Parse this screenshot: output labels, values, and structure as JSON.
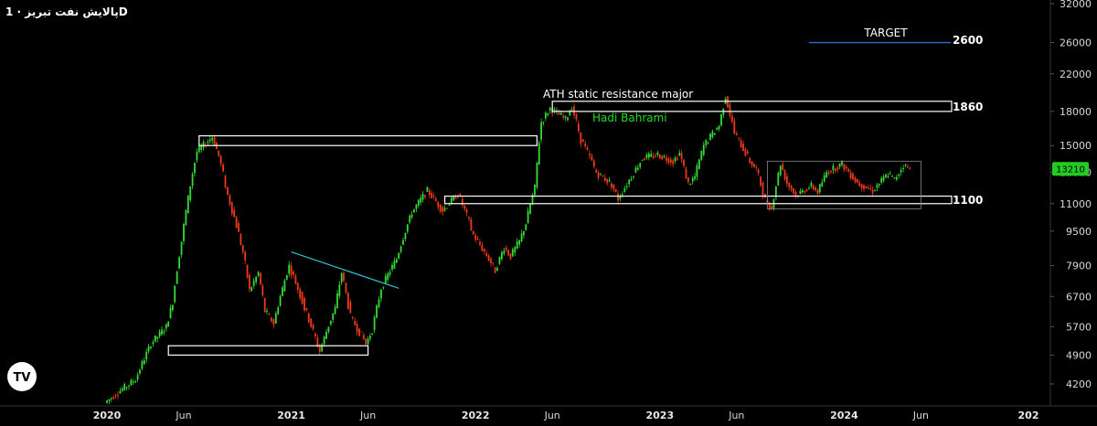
{
  "header": {
    "symbol": "پالایش نفت تبریز · 1D"
  },
  "colors": {
    "up": "#33dd33",
    "down": "#ee3a1a",
    "accent": "#2a6fd6",
    "trend": "#2ec4d6",
    "price_tag": "#22cc22"
  },
  "chart_data": {
    "type": "candlestick",
    "title": "پالایش نفت تبریز · 1D",
    "y_scale": "log",
    "y_ticks": [
      "32000",
      "26000",
      "22000",
      "18000",
      "15000",
      "13000",
      "11000",
      "9500",
      "7900",
      "6700",
      "5700",
      "4900",
      "4200"
    ],
    "x_ticks": [
      {
        "label": "2020",
        "date": "2020-01",
        "bold": true
      },
      {
        "label": "Jun",
        "date": "2020-06",
        "bold": false
      },
      {
        "label": "2021",
        "date": "2021-01",
        "bold": true
      },
      {
        "label": "Jun",
        "date": "2021-06",
        "bold": false
      },
      {
        "label": "2022",
        "date": "2022-01",
        "bold": true
      },
      {
        "label": "Jun",
        "date": "2022-06",
        "bold": false
      },
      {
        "label": "2023",
        "date": "2023-01",
        "bold": true
      },
      {
        "label": "Jun",
        "date": "2023-06",
        "bold": false
      },
      {
        "label": "2024",
        "date": "2024-01",
        "bold": true
      },
      {
        "label": "Jun",
        "date": "2024-06",
        "bold": false
      },
      {
        "label": "202",
        "date": "2025-01",
        "bold": true
      }
    ],
    "last_price": "13210",
    "series": [
      {
        "date": "2020-01",
        "close": 3800
      },
      {
        "date": "2020-03",
        "close": 4300
      },
      {
        "date": "2020-04",
        "close": 5200
      },
      {
        "date": "2020-05",
        "close": 5700
      },
      {
        "date": "2020-05",
        "close": 6500
      },
      {
        "date": "2020-06",
        "close": 9000
      },
      {
        "date": "2020-07",
        "close": 14500
      },
      {
        "date": "2020-08",
        "close": 15700
      },
      {
        "date": "2020-08",
        "close": 14200
      },
      {
        "date": "2020-09",
        "close": 11500
      },
      {
        "date": "2020-10",
        "close": 8500
      },
      {
        "date": "2020-10",
        "close": 6900
      },
      {
        "date": "2020-11",
        "close": 7600
      },
      {
        "date": "2020-11",
        "close": 6200
      },
      {
        "date": "2020-12",
        "close": 5800
      },
      {
        "date": "2021-01",
        "close": 7900
      },
      {
        "date": "2021-02",
        "close": 6300
      },
      {
        "date": "2021-03",
        "close": 5000
      },
      {
        "date": "2021-04",
        "close": 6300
      },
      {
        "date": "2021-04",
        "close": 7600
      },
      {
        "date": "2021-05",
        "close": 6000
      },
      {
        "date": "2021-06",
        "close": 5200
      },
      {
        "date": "2021-06",
        "close": 5600
      },
      {
        "date": "2021-07",
        "close": 7000
      },
      {
        "date": "2021-08",
        "close": 8200
      },
      {
        "date": "2021-09",
        "close": 10500
      },
      {
        "date": "2021-10",
        "close": 11800
      },
      {
        "date": "2021-10",
        "close": 11300
      },
      {
        "date": "2021-11",
        "close": 10600
      },
      {
        "date": "2021-12",
        "close": 11600
      },
      {
        "date": "2022-01",
        "close": 9300
      },
      {
        "date": "2022-02",
        "close": 8200
      },
      {
        "date": "2022-02",
        "close": 7700
      },
      {
        "date": "2022-03",
        "close": 8700
      },
      {
        "date": "2022-03",
        "close": 8300
      },
      {
        "date": "2022-04",
        "close": 9000
      },
      {
        "date": "2022-04",
        "close": 9900
      },
      {
        "date": "2022-05",
        "close": 12000
      },
      {
        "date": "2022-05",
        "close": 17000
      },
      {
        "date": "2022-06",
        "close": 18300
      },
      {
        "date": "2022-07",
        "close": 17200
      },
      {
        "date": "2022-07",
        "close": 18500
      },
      {
        "date": "2022-08",
        "close": 15500
      },
      {
        "date": "2022-09",
        "close": 13000
      },
      {
        "date": "2022-10",
        "close": 12200
      },
      {
        "date": "2022-10",
        "close": 11300
      },
      {
        "date": "2022-11",
        "close": 12200
      },
      {
        "date": "2022-12",
        "close": 14000
      },
      {
        "date": "2023-01",
        "close": 14300
      },
      {
        "date": "2023-02",
        "close": 13800
      },
      {
        "date": "2023-02",
        "close": 14400
      },
      {
        "date": "2023-03",
        "close": 12200
      },
      {
        "date": "2023-03",
        "close": 12700
      },
      {
        "date": "2023-04",
        "close": 15000
      },
      {
        "date": "2023-05",
        "close": 16700
      },
      {
        "date": "2023-05",
        "close": 19500
      },
      {
        "date": "2023-06",
        "close": 16000
      },
      {
        "date": "2023-07",
        "close": 13800
      },
      {
        "date": "2023-07",
        "close": 13200
      },
      {
        "date": "2023-08",
        "close": 11200
      },
      {
        "date": "2023-08",
        "close": 10700
      },
      {
        "date": "2023-09",
        "close": 13600
      },
      {
        "date": "2023-09",
        "close": 12300
      },
      {
        "date": "2023-10",
        "close": 11500
      },
      {
        "date": "2023-11",
        "close": 12100
      },
      {
        "date": "2023-11",
        "close": 11700
      },
      {
        "date": "2023-12",
        "close": 13000
      },
      {
        "date": "2024-01",
        "close": 13600
      },
      {
        "date": "2024-02",
        "close": 12300
      },
      {
        "date": "2024-03",
        "close": 11800
      },
      {
        "date": "2024-04",
        "close": 12900
      },
      {
        "date": "2024-04",
        "close": 12500
      },
      {
        "date": "2024-05",
        "close": 13500
      },
      {
        "date": "2024-05",
        "close": 13210
      }
    ],
    "resistance_zones": [
      {
        "from": "2022-06",
        "to": "2024-08",
        "low": 18000,
        "high": 19000
      },
      {
        "from": "2020-07",
        "to": "2022-05",
        "low": 15000,
        "high": 15800
      },
      {
        "from": "2021-11",
        "to": "2024-08",
        "low": 11000,
        "high": 11450
      },
      {
        "from": "2020-05",
        "to": "2021-06",
        "low": 4900,
        "high": 5150
      }
    ],
    "trend_line": {
      "from_date": "2021-01",
      "from_price": 8500,
      "to_date": "2021-08",
      "to_price": 7000
    },
    "range_box": {
      "from": "2023-08",
      "to": "2024-06",
      "low": 10700,
      "high": 13800
    },
    "target_line": {
      "from": "2024-03",
      "to": "2024-08",
      "price": 26000
    }
  },
  "annotations": {
    "target_label": "TARGET",
    "target_value": "2600",
    "ath_label": "ATH static resistance major",
    "level_1860": "1860",
    "level_1100": "1100",
    "signature": "Hadi Bahrami"
  },
  "logo": {
    "text": "TV"
  }
}
